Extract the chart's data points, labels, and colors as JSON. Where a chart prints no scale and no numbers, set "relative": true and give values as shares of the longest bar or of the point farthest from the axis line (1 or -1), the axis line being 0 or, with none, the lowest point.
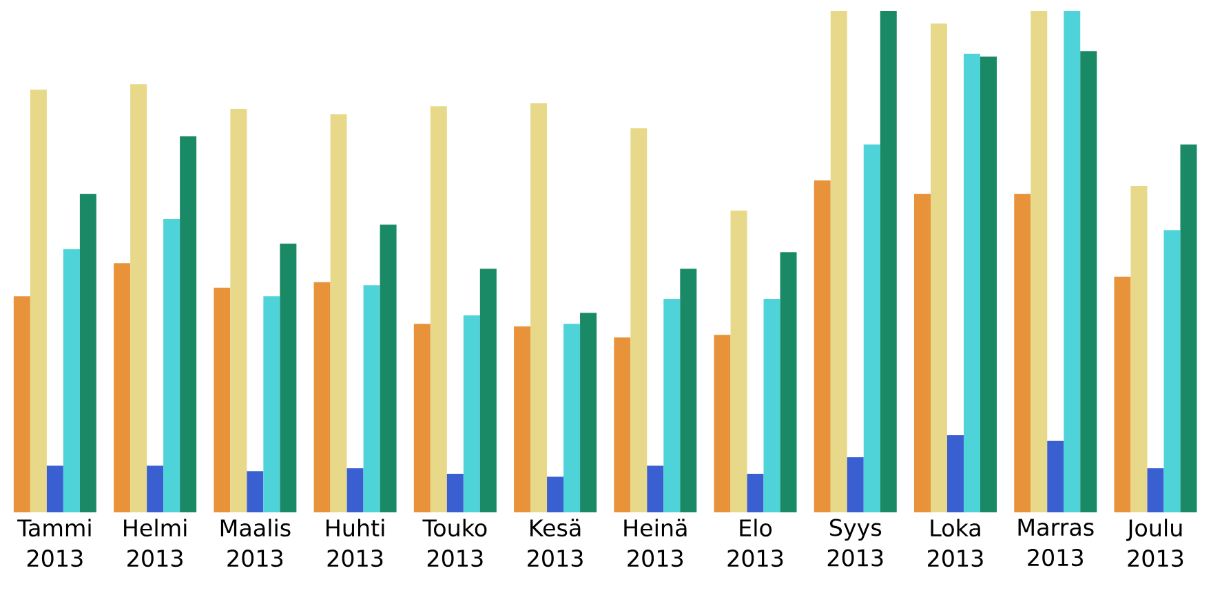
{
  "chart_data": {
    "type": "bar",
    "relative": true,
    "categories": [
      "Tammi 2013",
      "Helmi 2013",
      "Maalis 2013",
      "Huhti 2013",
      "Touko 2013",
      "Kesä 2013",
      "Heinä 2013",
      "Elo 2013",
      "Syys 2013",
      "Loka 2013",
      "Marras 2013",
      "Joulu 2013"
    ],
    "series": [
      {
        "color": "#e8923a",
        "values": [
          0.431,
          0.497,
          0.448,
          0.459,
          0.376,
          0.371,
          0.349,
          0.354,
          0.662,
          0.635,
          0.635,
          0.47
        ]
      },
      {
        "color": "#e8d98a",
        "values": [
          0.843,
          0.854,
          0.805,
          0.794,
          0.81,
          0.816,
          0.766,
          0.602,
          1,
          0.975,
          1,
          0.651
        ]
      },
      {
        "color": "#3a5fd0",
        "values": [
          0.093,
          0.093,
          0.082,
          0.088,
          0.077,
          0.071,
          0.093,
          0.077,
          0.11,
          0.154,
          0.143,
          0.088
        ]
      },
      {
        "color": "#4dd3d8",
        "values": [
          0.525,
          0.585,
          0.431,
          0.453,
          0.393,
          0.376,
          0.426,
          0.426,
          0.734,
          0.915,
          1,
          0.563
        ]
      },
      {
        "color": "#1a8a66",
        "values": [
          0.635,
          0.75,
          0.536,
          0.574,
          0.486,
          0.398,
          0.486,
          0.519,
          1,
          0.909,
          0.92,
          0.734
        ]
      }
    ]
  }
}
